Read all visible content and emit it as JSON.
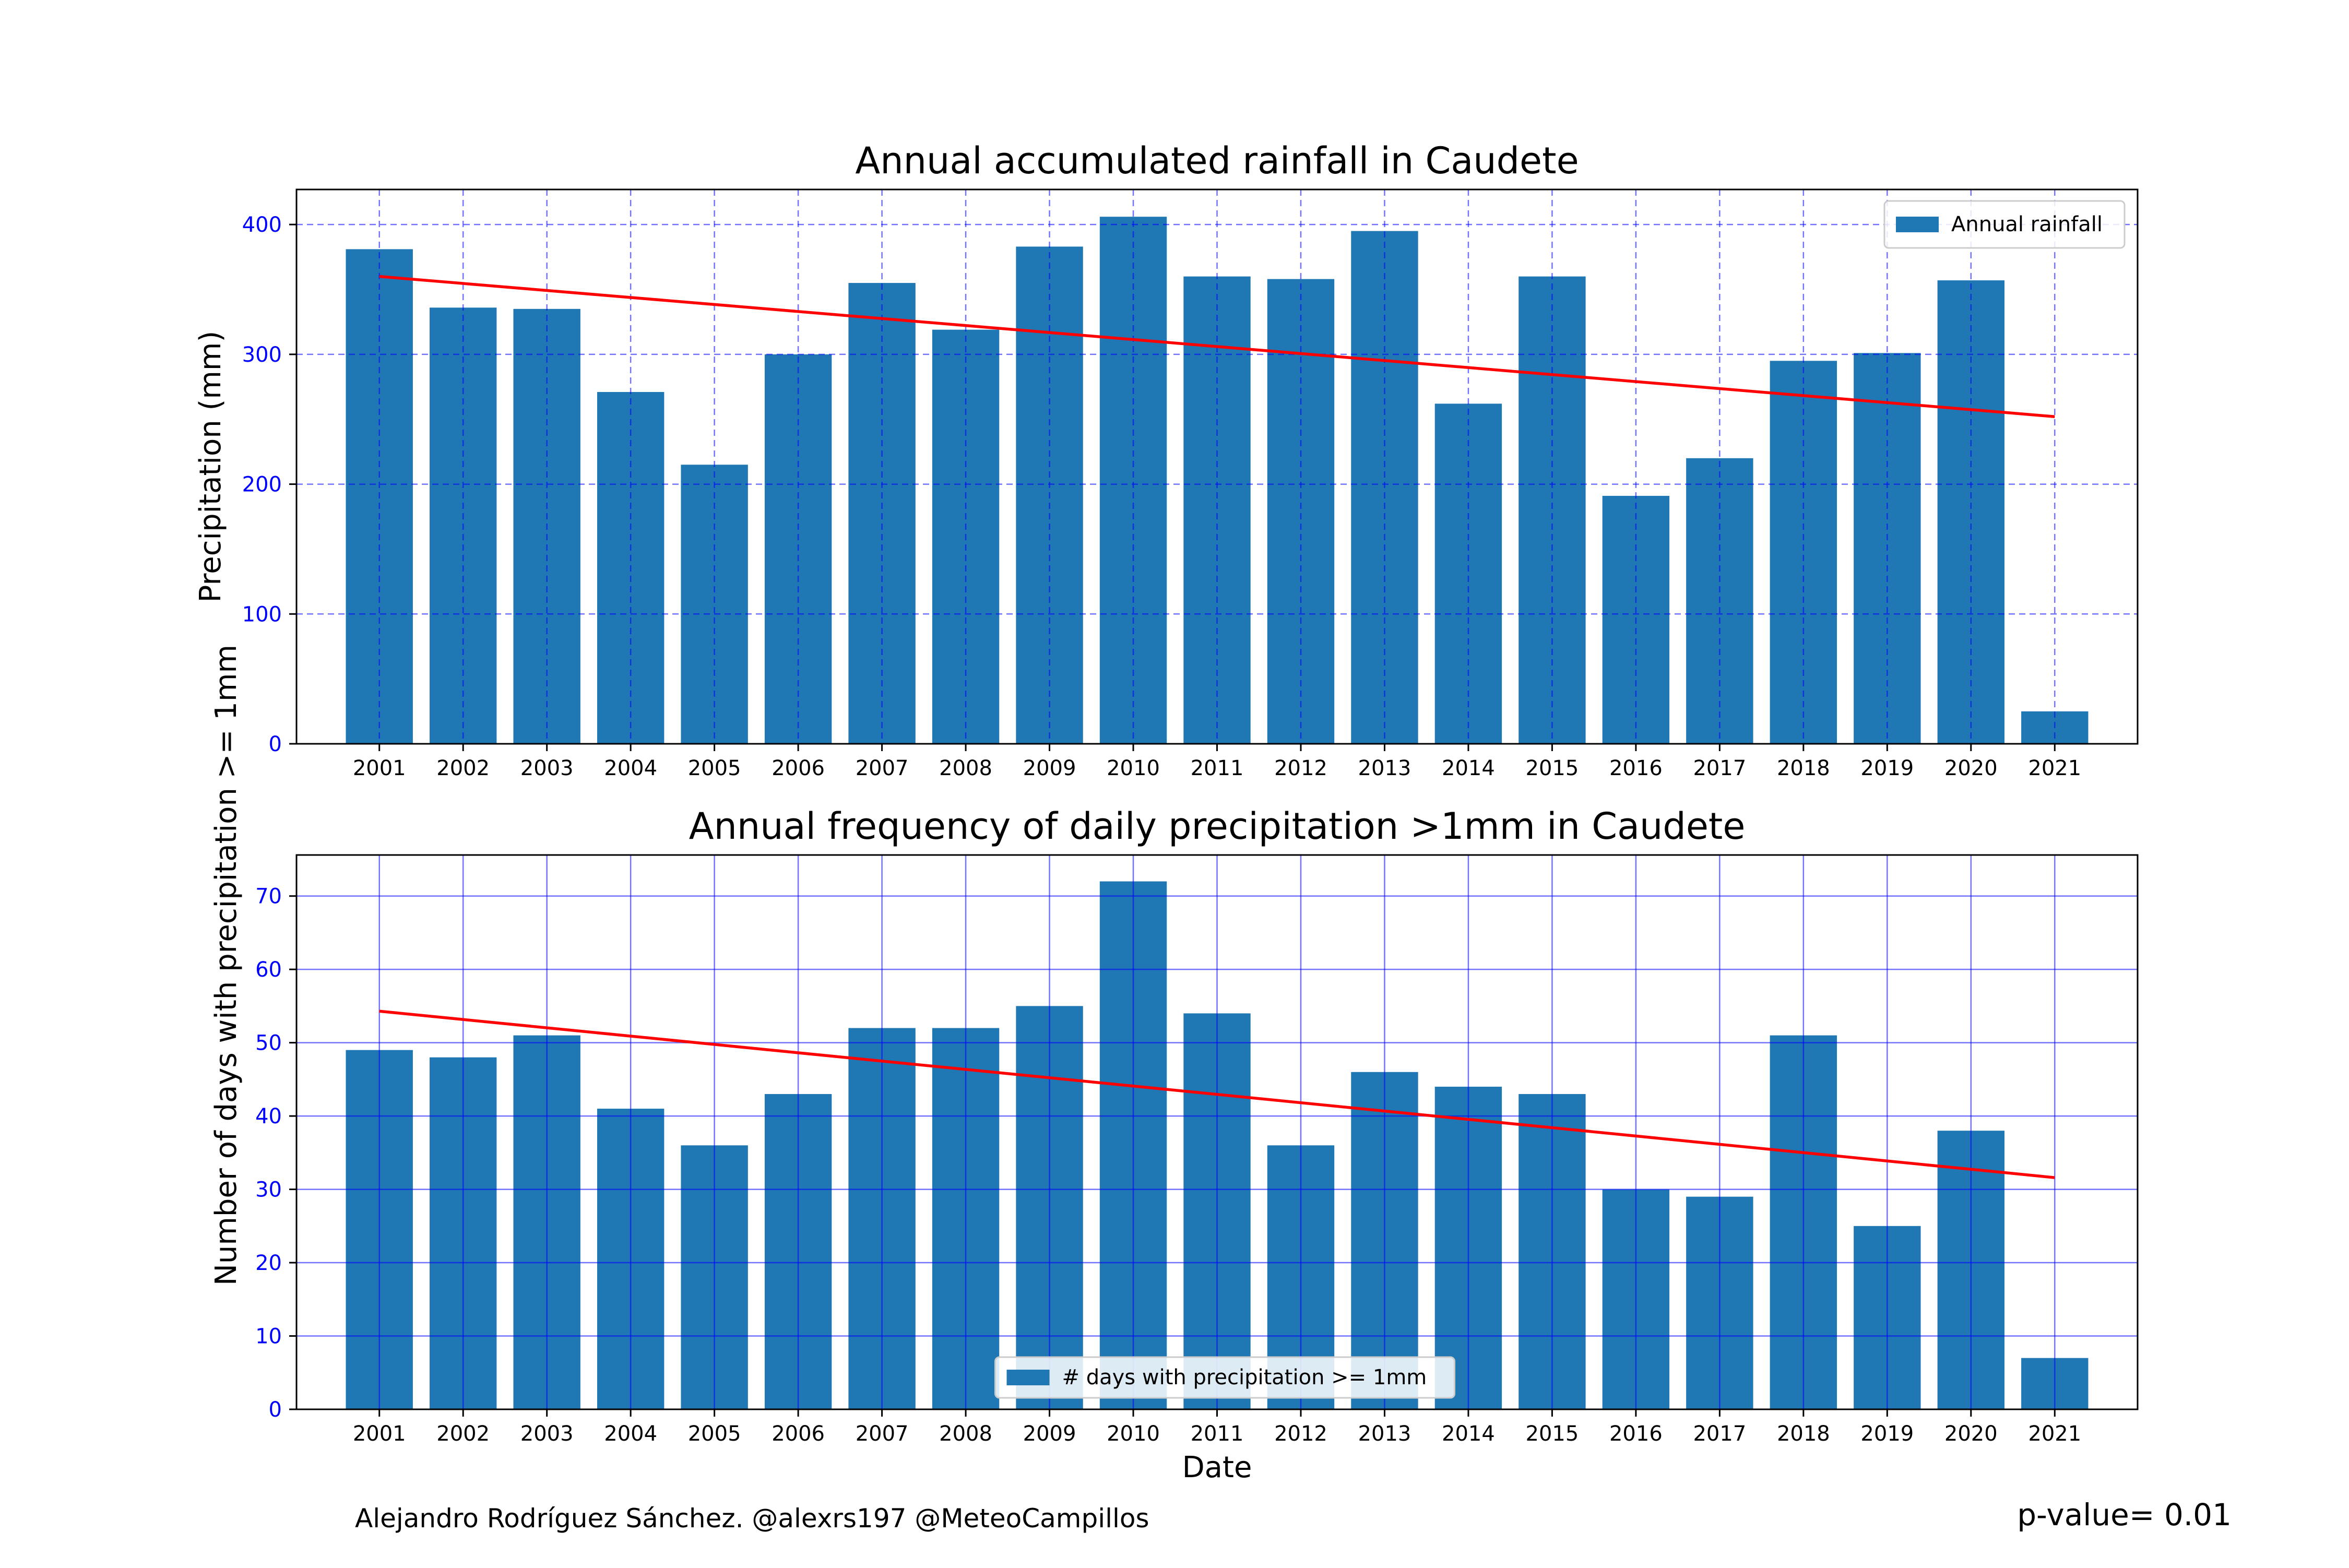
{
  "chart_data": [
    {
      "type": "bar",
      "title": "Annual accumulated rainfall in Caudete",
      "xlabel": "",
      "ylabel": "Precipitation (mm)",
      "categories": [
        "2001",
        "2002",
        "2003",
        "2004",
        "2005",
        "2006",
        "2007",
        "2008",
        "2009",
        "2010",
        "2011",
        "2012",
        "2013",
        "2014",
        "2015",
        "2016",
        "2017",
        "2018",
        "2019",
        "2020",
        "2021"
      ],
      "series": [
        {
          "name": "Annual rainfall",
          "values": [
            381,
            336,
            335,
            271,
            215,
            300,
            355,
            319,
            383,
            406,
            360,
            358,
            395,
            262,
            360,
            191,
            220,
            295,
            301,
            357,
            25
          ]
        }
      ],
      "trend": {
        "start": 360,
        "end": 252,
        "color": "#ff0000"
      },
      "yticks": [
        0,
        100,
        200,
        300,
        400
      ],
      "ylim": [
        0,
        427
      ],
      "grid": true,
      "grid_style": "dashed",
      "legend_position": "upper right",
      "bar_color": "#1f77b4",
      "tick_label_color": "#0000ff",
      "grid_color": "#0000ff"
    },
    {
      "type": "bar",
      "title": "Annual frequency of daily precipitation >1mm in Caudete",
      "xlabel": "Date",
      "ylabel": "Number of days with precipitation >= 1mm",
      "categories": [
        "2001",
        "2002",
        "2003",
        "2004",
        "2005",
        "2006",
        "2007",
        "2008",
        "2009",
        "2010",
        "2011",
        "2012",
        "2013",
        "2014",
        "2015",
        "2016",
        "2017",
        "2018",
        "2019",
        "2020",
        "2021"
      ],
      "series": [
        {
          "name": "# days with precipitation >= 1mm",
          "values": [
            49,
            48,
            51,
            41,
            36,
            43,
            52,
            52,
            55,
            72,
            54,
            36,
            46,
            44,
            43,
            30,
            29,
            51,
            25,
            38,
            7
          ]
        }
      ],
      "trend": {
        "start": 54.3,
        "end": 31.6,
        "color": "#ff0000"
      },
      "yticks": [
        0,
        10,
        20,
        30,
        40,
        50,
        60,
        70
      ],
      "ylim": [
        0,
        75.6
      ],
      "grid": true,
      "grid_style": "solid",
      "legend_position": "lower center",
      "bar_color": "#1f77b4",
      "tick_label_color": "#0000ff",
      "grid_color": "#0000ff"
    }
  ],
  "footer": {
    "author": "Alejandro Rodríguez Sánchez. @alexrs197 @MeteoCampillos",
    "pvalue": "p-value= 0.01"
  }
}
